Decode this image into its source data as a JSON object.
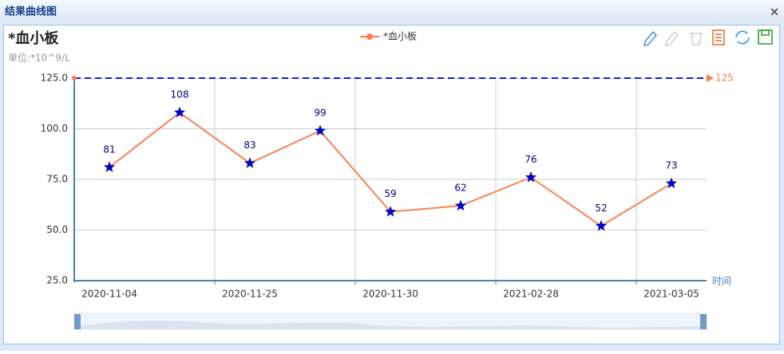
{
  "window_title": "结果曲线图",
  "chart_data": {
    "type": "line",
    "title": "*血小板",
    "subtitle": "单位:*10^9/L",
    "categories": [
      "2020-11-04",
      null,
      "2020-11-25",
      null,
      "2020-11-30",
      null,
      "2021-02-28",
      null,
      "2021-03-05"
    ],
    "series": [
      {
        "name": "*血小板",
        "color": "#ff7f50",
        "marker_color": "#0000c8",
        "values": [
          81,
          108,
          83,
          99,
          59,
          62,
          76,
          52,
          73
        ]
      }
    ],
    "ylim": [
      25,
      125
    ],
    "yticks": [
      {
        "value": 25,
        "label": "25.0"
      },
      {
        "value": 50,
        "label": "50.0"
      },
      {
        "value": 75,
        "label": "75.0"
      },
      {
        "value": 100,
        "label": "100.0"
      },
      {
        "value": 125,
        "label": "125.0"
      }
    ],
    "x_axis_label": "时间",
    "mark_line": {
      "value": 125,
      "label": "125",
      "color": "#1a1ae6"
    },
    "grid": true
  }
}
